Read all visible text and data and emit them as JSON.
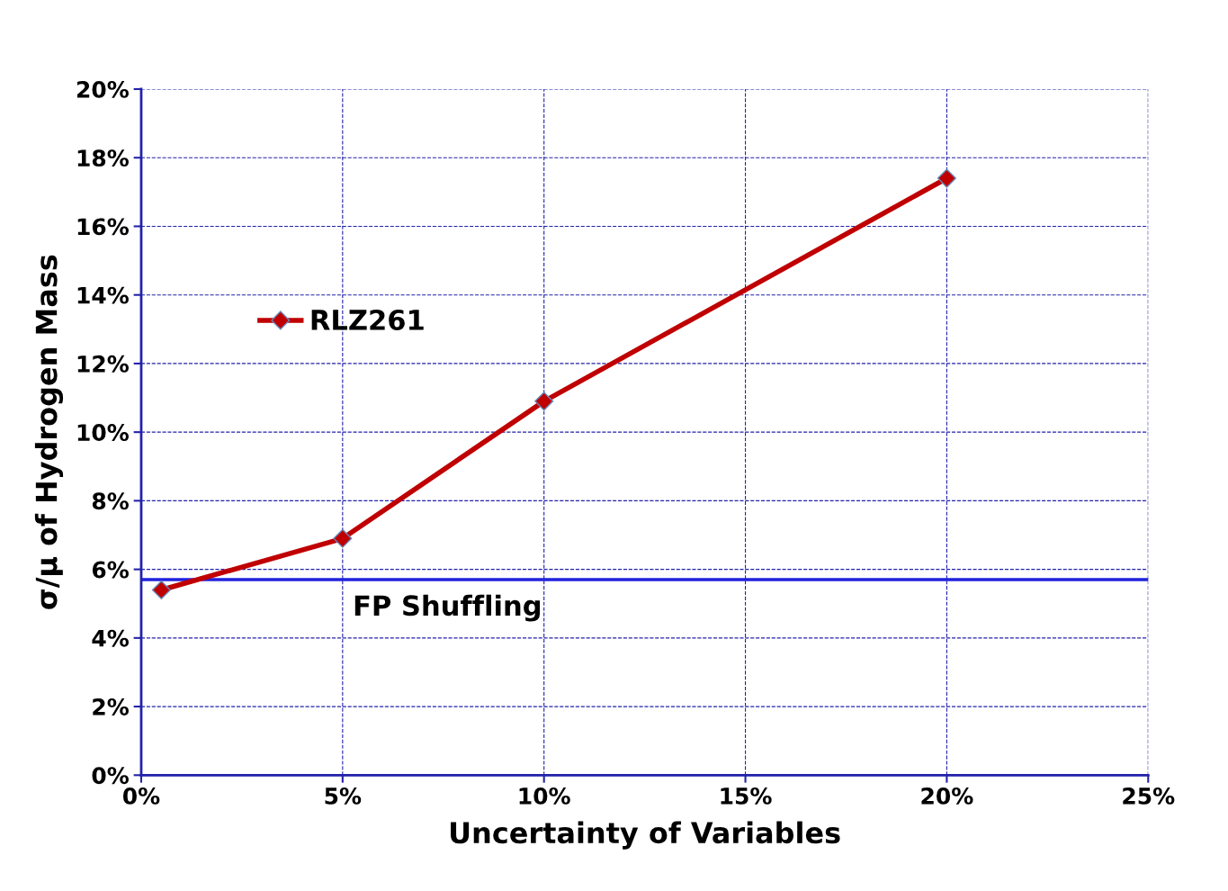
{
  "chart_data": {
    "type": "line",
    "xlabel": "Uncertainty of Variables",
    "ylabel": "σ/μ of Hydrogen Mass",
    "x": [
      0.5,
      5,
      10,
      20
    ],
    "series": [
      {
        "name": "RLZ261",
        "color": "#c00000",
        "values": [
          5.4,
          6.9,
          10.9,
          17.4
        ]
      }
    ],
    "xlim": [
      0,
      25
    ],
    "xticks": [
      {
        "value": 0,
        "label": "0%"
      },
      {
        "value": 5,
        "label": "5%"
      },
      {
        "value": 10,
        "label": "10%"
      },
      {
        "value": 15,
        "label": "15%"
      },
      {
        "value": 20,
        "label": "20%"
      },
      {
        "value": 25,
        "label": "25%"
      }
    ],
    "ylim": [
      0,
      20
    ],
    "yticks": [
      {
        "value": 0,
        "label": "0%"
      },
      {
        "value": 2,
        "label": "2%"
      },
      {
        "value": 4,
        "label": "4%"
      },
      {
        "value": 6,
        "label": "6%"
      },
      {
        "value": 8,
        "label": "8%"
      },
      {
        "value": 10,
        "label": "10%"
      },
      {
        "value": 12,
        "label": "12%"
      },
      {
        "value": 14,
        "label": "14%"
      },
      {
        "value": 16,
        "label": "16%"
      },
      {
        "value": 18,
        "label": "18%"
      },
      {
        "value": 20,
        "label": "20%"
      }
    ],
    "ref_lines": [
      {
        "axis": "y",
        "value": 5.7,
        "label": "FP Shuffling",
        "color": "#2222dd",
        "line_style": "solid"
      }
    ],
    "grid": true,
    "legend": "left",
    "marker": "diamond",
    "line_style": "solid"
  }
}
